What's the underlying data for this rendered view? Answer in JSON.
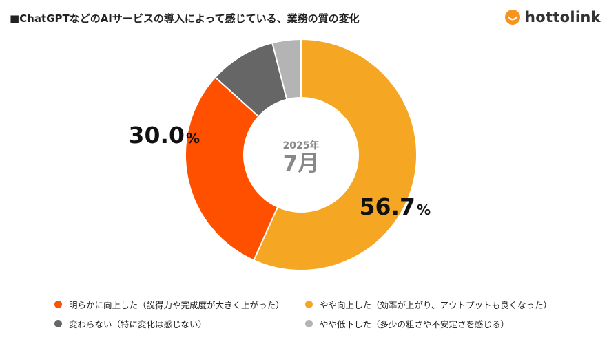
{
  "header": {
    "title": "■ChatGPTなどのAIサービスの導入によって感じている、業務の質の変化",
    "logo_text": "hottolink"
  },
  "colors": {
    "accent": "#f5a623",
    "brand": "#f7931e"
  },
  "chart_data": {
    "type": "pie",
    "variant": "donut",
    "center_label_year": "2025年",
    "center_label_month": "7月",
    "slices": [
      {
        "name": "やや向上した（効率が上がり、アウトプットも良くなった）",
        "value": 56.7,
        "color": "#f5a623",
        "label": "56.7",
        "show_label": true
      },
      {
        "name": "明らかに向上した（説得力や完成度が大きく上がった）",
        "value": 30.0,
        "color": "#ff5000",
        "label": "30.0",
        "show_label": true
      },
      {
        "name": "変わらない（特に変化は感じない）",
        "value": 9.3,
        "color": "#666666",
        "label": "",
        "show_label": false
      },
      {
        "name": "やや低下した（多少の粗さや不安定さを感じる）",
        "value": 4.0,
        "color": "#b4b4b4",
        "label": "",
        "show_label": false
      }
    ],
    "percent_sign": "%"
  },
  "legend": {
    "items": [
      {
        "label": "明らかに向上した（説得力や完成度が大きく上がった）",
        "color": "#ff5000"
      },
      {
        "label": "やや向上した（効率が上がり、アウトプットも良くなった）",
        "color": "#f5a623"
      },
      {
        "label": "変わらない（特に変化は感じない）",
        "color": "#666666"
      },
      {
        "label": "やや低下した（多少の粗さや不安定さを感じる）",
        "color": "#b4b4b4"
      }
    ]
  }
}
